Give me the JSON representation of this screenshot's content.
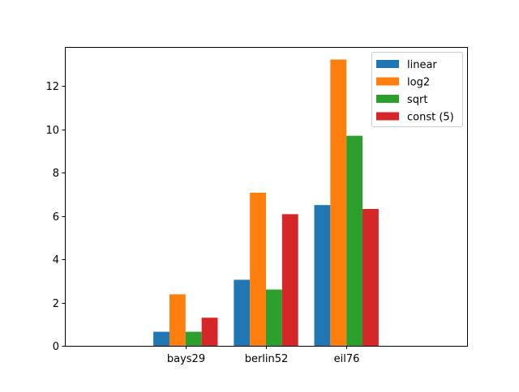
{
  "chart_data": {
    "type": "bar",
    "title": "",
    "xlabel": "",
    "ylabel": "",
    "categories": [
      "bays29",
      "berlin52",
      "eil76"
    ],
    "ylim": [
      0,
      13.8
    ],
    "yticks": [
      0,
      2,
      4,
      6,
      8,
      10,
      12
    ],
    "grid": false,
    "legend_position": "top-right",
    "series": [
      {
        "name": "linear",
        "color": "#1f77b4",
        "values": [
          0.65,
          3.05,
          6.5
        ]
      },
      {
        "name": "log2",
        "color": "#ff7f0e",
        "values": [
          2.38,
          7.07,
          13.22
        ]
      },
      {
        "name": "sqrt",
        "color": "#2ca02c",
        "values": [
          0.65,
          2.6,
          9.7
        ]
      },
      {
        "name": "const (5)",
        "color": "#d62728",
        "values": [
          1.3,
          6.08,
          6.32
        ]
      }
    ]
  }
}
